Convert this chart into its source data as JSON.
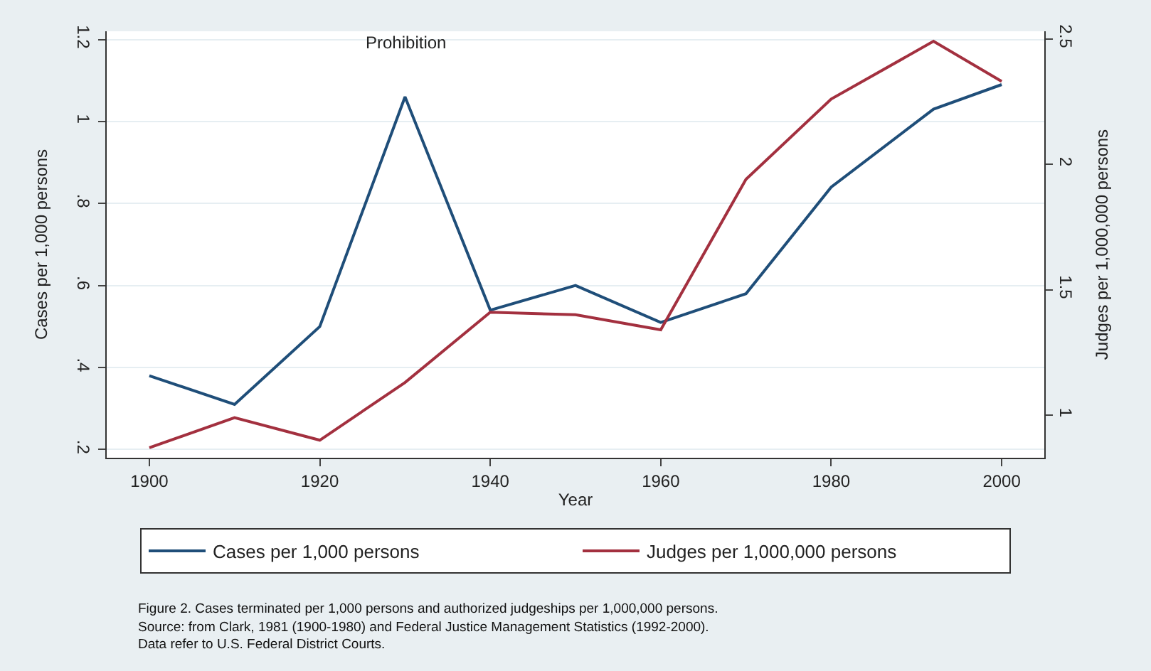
{
  "chart_data": {
    "type": "line",
    "xlabel": "Year",
    "ylabel": "Cases per 1,000 persons",
    "y2label": "Judges per 1,000,000 persons",
    "x": [
      1900,
      1910,
      1920,
      1930,
      1940,
      1950,
      1960,
      1970,
      1980,
      1992,
      2000
    ],
    "series": [
      {
        "name": "Cases per 1,000 persons",
        "color": "#1f4e79",
        "values": [
          0.38,
          0.31,
          0.5,
          1.06,
          0.54,
          0.6,
          0.51,
          0.58,
          0.84,
          1.03,
          1.09
        ]
      },
      {
        "name": "Judges per 1,000,000 persons",
        "color": "#a3303f",
        "axis": "y2",
        "values": [
          0.87,
          0.99,
          0.9,
          1.13,
          1.41,
          1.4,
          1.34,
          1.94,
          2.26,
          2.49,
          2.33
        ]
      }
    ],
    "xlim": [
      1895,
      2005
    ],
    "xticks": [
      1900,
      1920,
      1940,
      1960,
      1980,
      2000
    ],
    "ylim": [
      0.18,
      1.22
    ],
    "yticks": [
      {
        "value": 0.2,
        "label": ".2"
      },
      {
        "value": 0.4,
        "label": ".4"
      },
      {
        "value": 0.6,
        "label": ".6"
      },
      {
        "value": 0.8,
        "label": ".8"
      },
      1,
      1.2
    ],
    "y2lim": [
      0.83,
      2.53
    ],
    "y2ticks": [
      1,
      1.5,
      2,
      2.5
    ],
    "grid": "y",
    "legend": "bottom",
    "marker": "none",
    "line_style": "solid",
    "annotations": [
      "Prohibition",
      "Figure 2. Cases terminated per 1,000 persons and authorized judgeships per 1,000,000 persons.",
      "Source: from Clark, 1981 (1900-1980) and Federal Justice Management Statistics (1992-2000).",
      "Data refer to U.S. Federal District Courts."
    ]
  }
}
